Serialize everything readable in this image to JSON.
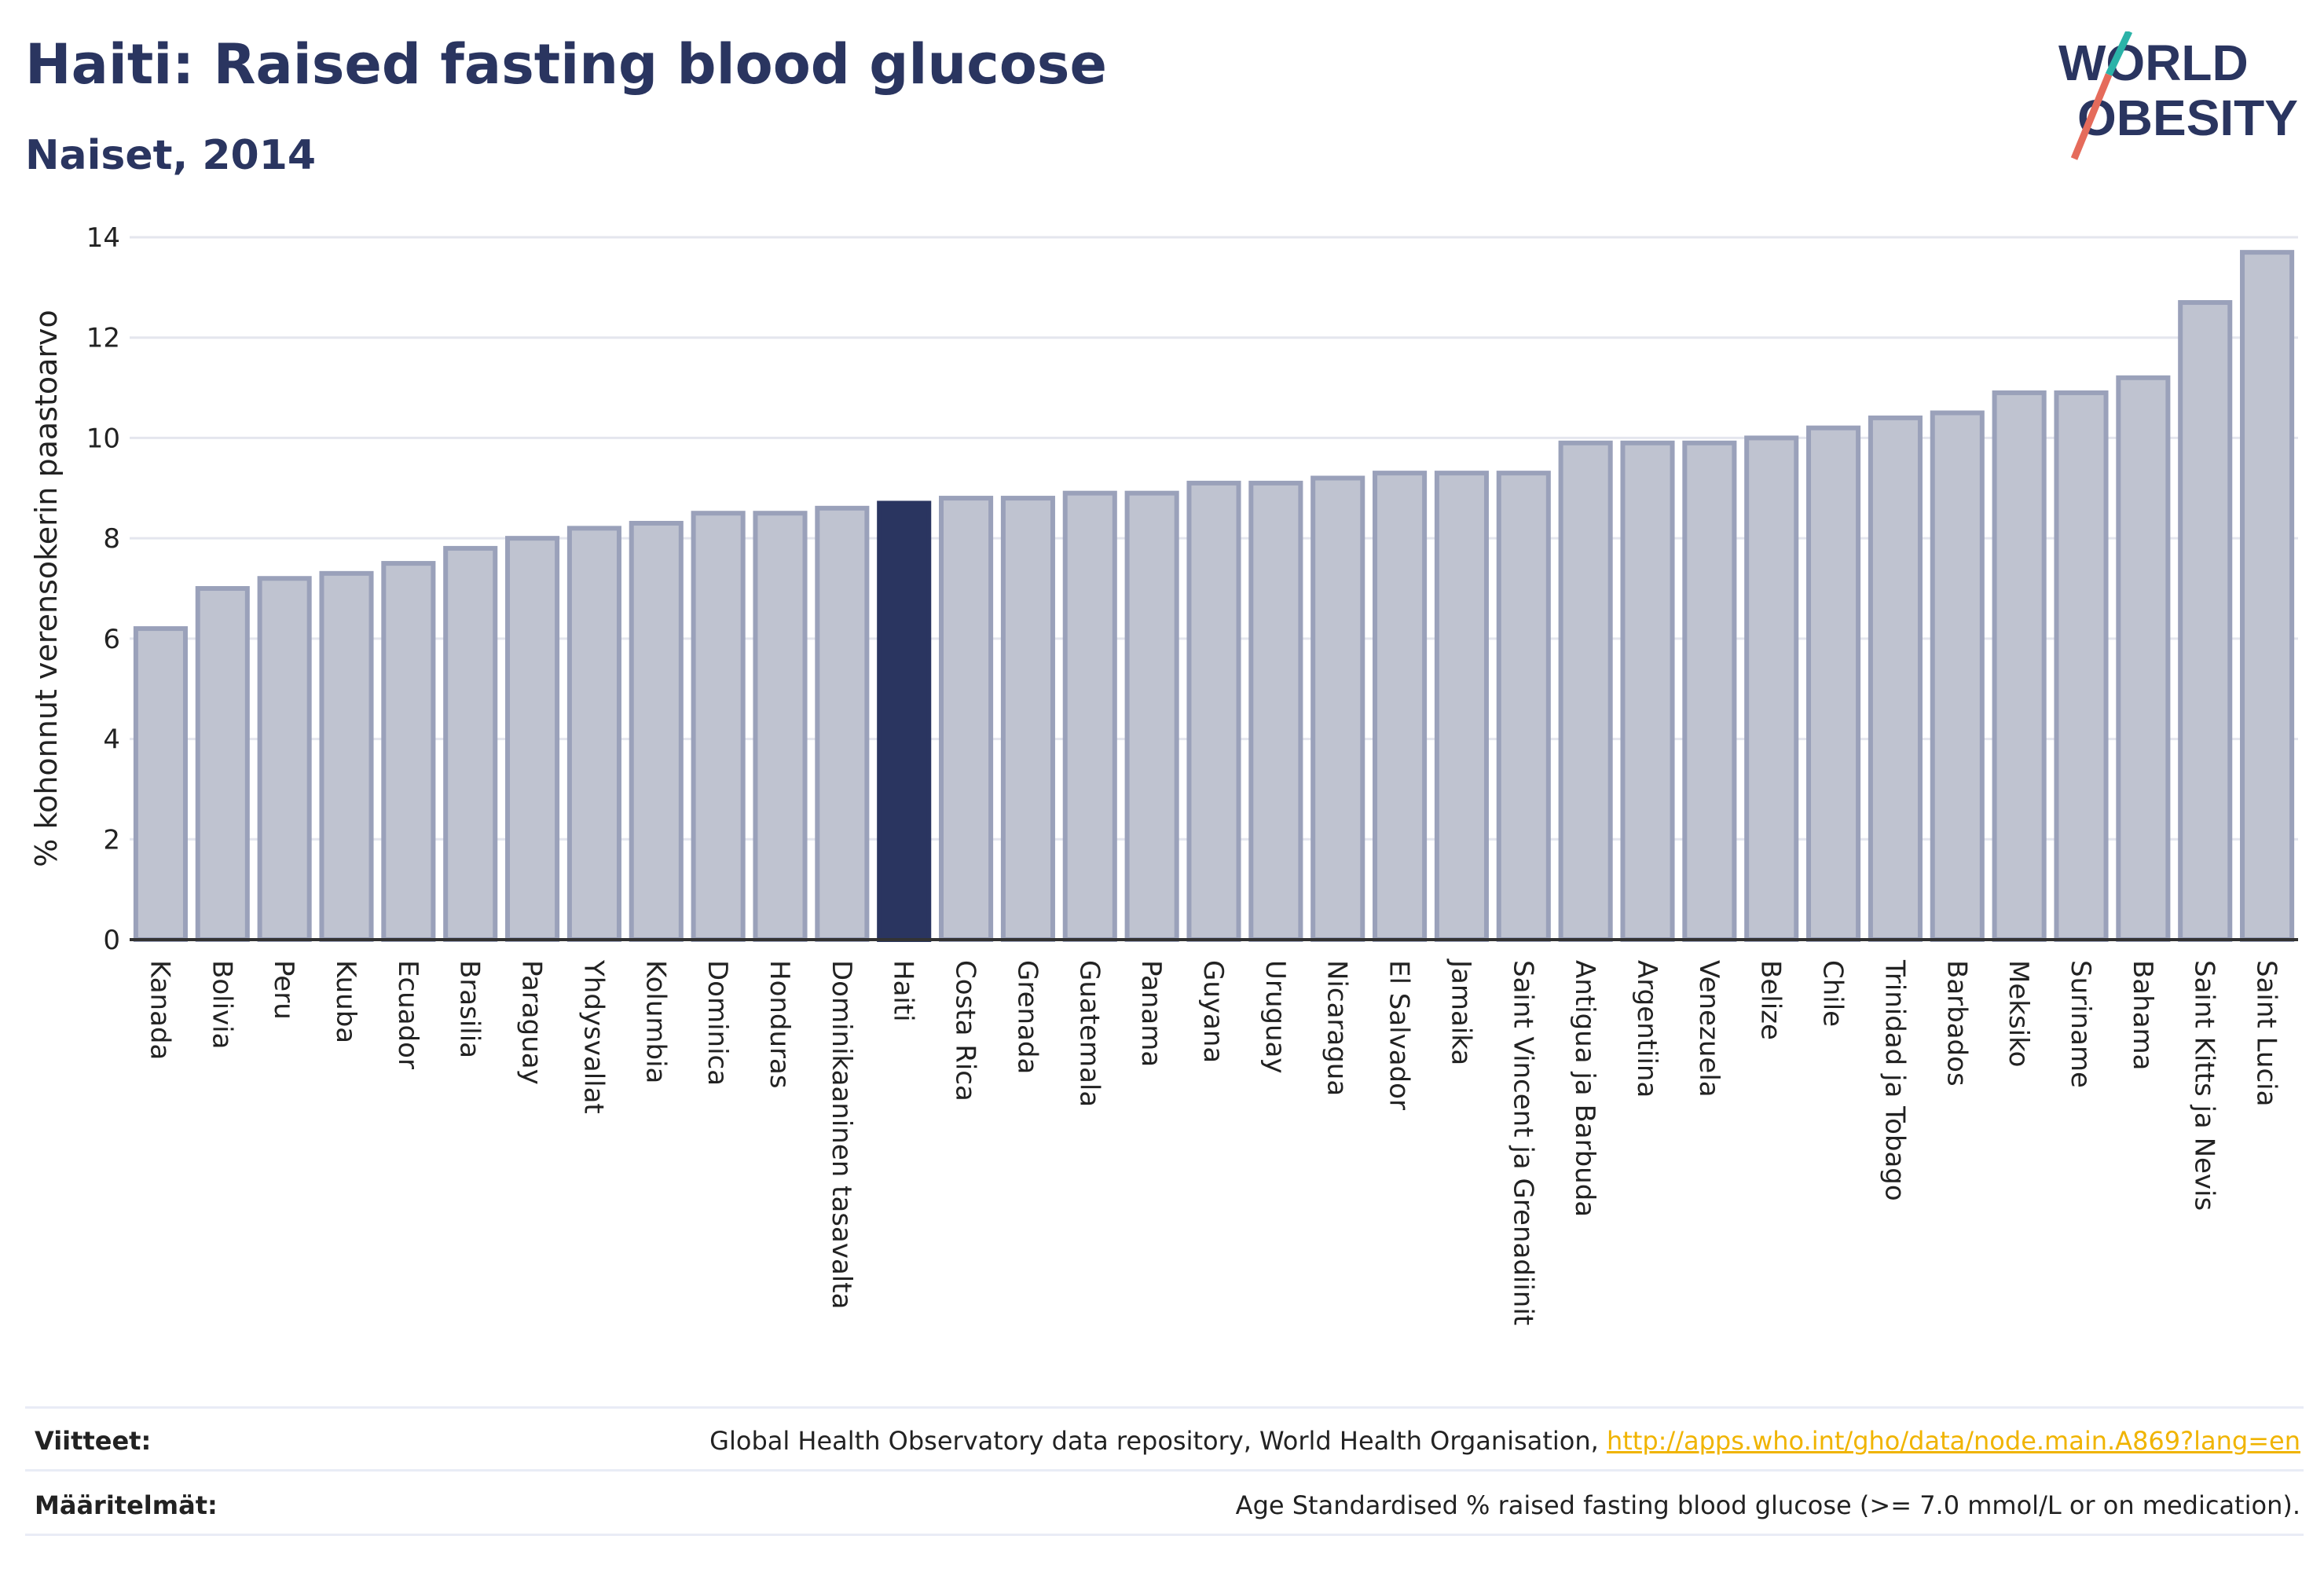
{
  "header": {
    "title": "Haiti: Raised fasting blood glucose",
    "subtitle": "Naiset, 2014"
  },
  "logo": {
    "line1": "WORLD",
    "line2": "OBESITY"
  },
  "chart_data": {
    "type": "bar",
    "title": "Haiti: Raised fasting blood glucose",
    "subtitle": "Naiset, 2014",
    "xlabel": "",
    "ylabel": "% kohonnut verensokerin paastoarvo",
    "ylim": [
      0,
      14
    ],
    "yticks": [
      0,
      2,
      4,
      6,
      8,
      10,
      12,
      14
    ],
    "grid": true,
    "highlight": "Haiti",
    "colors": {
      "bar": "#bfc3d0",
      "bar_edge": "#9aa1ba",
      "highlight": "#2a3560",
      "grid": "#e4e6ee",
      "axis": "#333333"
    },
    "categories": [
      "Kanada",
      "Bolivia",
      "Peru",
      "Kuuba",
      "Ecuador",
      "Brasilia",
      "Paraguay",
      "Yhdysvallat",
      "Kolumbia",
      "Dominica",
      "Honduras",
      "Dominikaaninen tasavalta",
      "Haiti",
      "Costa Rica",
      "Grenada",
      "Guatemala",
      "Panama",
      "Guyana",
      "Uruguay",
      "Nicaragua",
      "El Salvador",
      "Jamaika",
      "Saint Vincent ja Grenadiinit",
      "Antigua ja Barbuda",
      "Argentiina",
      "Venezuela",
      "Belize",
      "Chile",
      "Trinidad ja Tobago",
      "Barbados",
      "Meksiko",
      "Suriname",
      "Bahama",
      "Saint Kitts ja Nevis",
      "Saint Lucia"
    ],
    "values": [
      6.2,
      7.0,
      7.2,
      7.3,
      7.5,
      7.8,
      8.0,
      8.2,
      8.3,
      8.5,
      8.5,
      8.6,
      8.7,
      8.8,
      8.8,
      8.9,
      8.9,
      9.1,
      9.1,
      9.2,
      9.3,
      9.3,
      9.3,
      9.9,
      9.9,
      9.9,
      10.0,
      10.2,
      10.4,
      10.5,
      10.9,
      10.9,
      11.2,
      12.7,
      13.7
    ]
  },
  "footer": {
    "sources_label": "Viitteet:",
    "sources_text": "Global Health Observatory data repository, World Health Organisation, ",
    "sources_link": "http://apps.who.int/gho/data/node.main.A869?lang=en",
    "definitions_label": "Määritelmät:",
    "definitions_text": "Age Standardised % raised fasting blood glucose (>= 7.0 mmol/L or on medication)."
  }
}
